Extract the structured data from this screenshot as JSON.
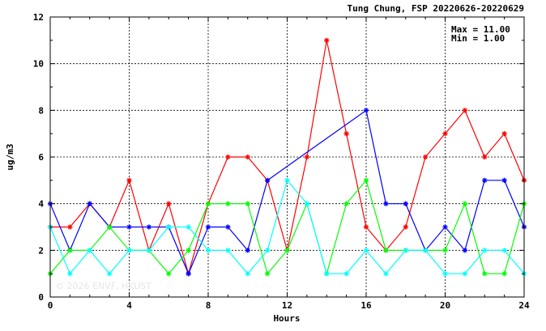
{
  "chart_data": {
    "type": "line",
    "title": "Tung Chung, FSP 20220626-20220629",
    "xlabel": "Hours",
    "ylabel": "ug/m3",
    "xlim": [
      0,
      24
    ],
    "ylim": [
      0,
      12
    ],
    "xticks": [
      0,
      4,
      8,
      12,
      16,
      20,
      24
    ],
    "yticks": [
      0,
      2,
      4,
      6,
      8,
      10,
      12
    ],
    "grid": true,
    "stats": {
      "max_text": "Max = 11.00",
      "min_text": "Min =  1.00"
    },
    "watermark": "© 2026  ENVF, HKUST",
    "x": [
      0,
      1,
      2,
      3,
      4,
      5,
      6,
      7,
      8,
      9,
      10,
      11,
      12,
      13,
      14,
      15,
      16,
      17,
      18,
      19,
      20,
      21,
      22,
      23,
      24
    ],
    "series": [
      {
        "color": "#ff0000",
        "values": [
          3,
          3,
          4,
          3,
          5,
          2,
          4,
          1,
          4,
          6,
          6,
          5,
          2,
          6,
          11,
          7,
          3,
          2,
          3,
          6,
          7,
          8,
          6,
          7,
          5
        ]
      },
      {
        "color": "#0000ff",
        "values": [
          4,
          2,
          4,
          3,
          3,
          3,
          3,
          1,
          3,
          3,
          2,
          5,
          null,
          null,
          null,
          null,
          8,
          4,
          4,
          2,
          3,
          2,
          5,
          5,
          3
        ]
      },
      {
        "color": "#00ff00",
        "values": [
          1,
          2,
          2,
          3,
          2,
          2,
          1,
          2,
          4,
          4,
          4,
          1,
          2,
          4,
          1,
          4,
          5,
          2,
          2,
          2,
          2,
          4,
          1,
          1,
          4
        ]
      },
      {
        "color": "#00ffff",
        "values": [
          3,
          1,
          2,
          1,
          2,
          2,
          3,
          3,
          2,
          2,
          1,
          2,
          5,
          4,
          1,
          1,
          2,
          1,
          2,
          2,
          1,
          1,
          2,
          2,
          1
        ]
      }
    ]
  }
}
